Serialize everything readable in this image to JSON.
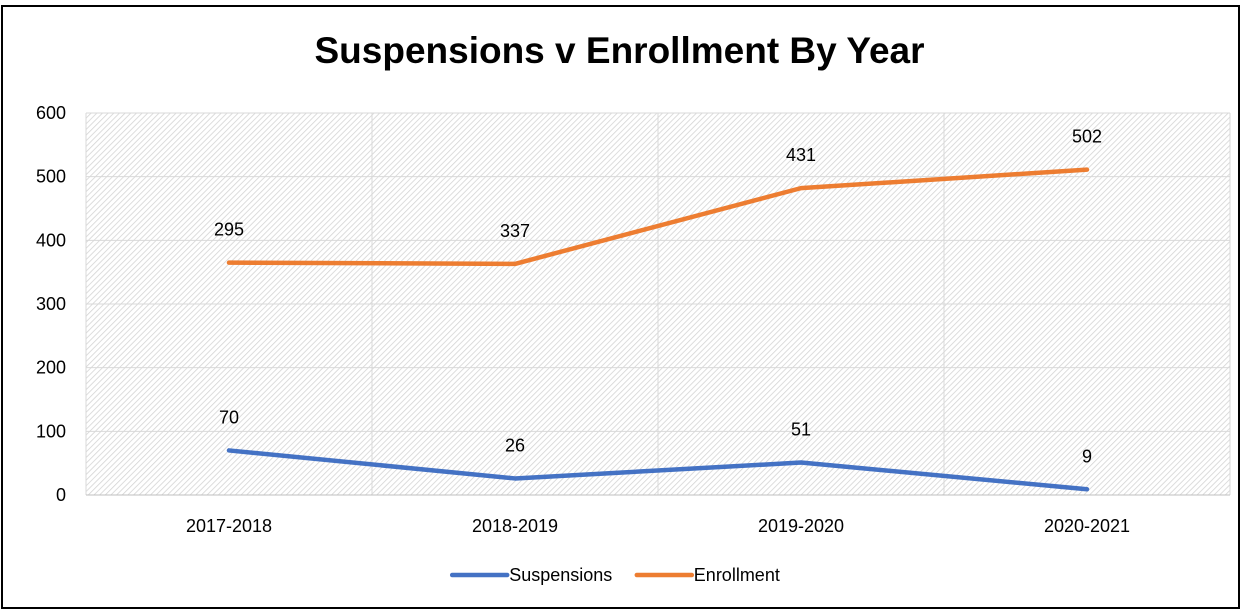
{
  "chart_data": {
    "type": "line",
    "title": "Suspensions v Enrollment By Year",
    "xlabel": "",
    "ylabel": "",
    "categories": [
      "2017-2018",
      "2018-2019",
      "2019-2020",
      "2020-2021"
    ],
    "ylim": [
      0,
      600
    ],
    "yticks": [
      0,
      100,
      200,
      300,
      400,
      500,
      600
    ],
    "grid": true,
    "legend_position": "bottom",
    "series": [
      {
        "name": "Suspensions",
        "color": "#4472C4",
        "values": [
          70,
          26,
          51,
          9
        ],
        "labels": [
          "70",
          "26",
          "51",
          "9"
        ]
      },
      {
        "name": "Enrollment",
        "color": "#ED7D31",
        "values": [
          365,
          363,
          482,
          511
        ],
        "labels": [
          "295",
          "337",
          "431",
          "502"
        ]
      }
    ]
  }
}
